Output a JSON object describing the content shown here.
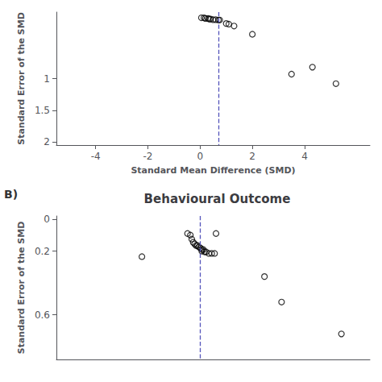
{
  "chart_data": [
    {
      "type": "scatter",
      "xlabel": "Standard Mean Difference (SMD)",
      "ylabel": "Standard Error of the SMD",
      "x": [
        0.05,
        0.15,
        0.2,
        0.3,
        0.35,
        0.4,
        0.5,
        0.6,
        0.7,
        0.75,
        1.0,
        1.1,
        1.3,
        2.0,
        3.5,
        4.3,
        5.2
      ],
      "values": [
        0.04,
        0.04,
        0.05,
        0.05,
        0.06,
        0.06,
        0.07,
        0.07,
        0.075,
        0.075,
        0.13,
        0.14,
        0.17,
        0.3,
        0.93,
        0.82,
        1.08
      ],
      "color": "#000000",
      "marker": "circle",
      "xlim": [
        -5.5,
        6.5
      ],
      "ylim": [
        2.05,
        -0.05
      ],
      "xticks": [
        -4,
        -2,
        0,
        2,
        4
      ],
      "yticks": [
        1,
        1.5,
        2
      ],
      "vline": {
        "x": 0.7,
        "color": "#5555bb",
        "line_style": "dashed"
      },
      "grid": false
    },
    {
      "type": "scatter",
      "title": "Behavioural Outcome",
      "annotation": "B)",
      "ylabel": "Standard Error of the SMD",
      "x": [
        -1.5,
        0.1,
        0.2,
        0.25,
        0.3,
        0.35,
        0.4,
        0.45,
        0.5,
        0.55,
        0.6,
        0.65,
        0.6,
        0.7,
        0.75,
        0.85,
        0.95,
        1.05,
        1.1,
        2.8,
        3.4,
        5.5
      ],
      "values": [
        0.235,
        0.09,
        0.1,
        0.125,
        0.145,
        0.155,
        0.165,
        0.165,
        0.175,
        0.18,
        0.19,
        0.19,
        0.2,
        0.205,
        0.205,
        0.215,
        0.215,
        0.215,
        0.09,
        0.36,
        0.52,
        0.72
      ],
      "color": "#000000",
      "marker": "circle",
      "xlim": [
        -4.5,
        6.5
      ],
      "ylim": [
        0.88,
        -0.02
      ],
      "xticks": [],
      "yticks": [
        0,
        0.2,
        0.6
      ],
      "tick_labels": "y",
      "vline": {
        "x": 0.55,
        "color": "#5555bb",
        "line_style": "dashed"
      },
      "grid": false
    }
  ]
}
